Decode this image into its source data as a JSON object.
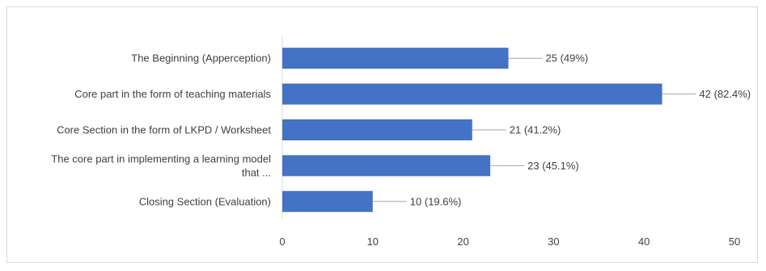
{
  "chart_data": {
    "type": "bar",
    "orientation": "horizontal",
    "categories": [
      [
        "The Beginning (Apperception)"
      ],
      [
        "Core part in the form of teaching materials"
      ],
      [
        "Core Section in the form of LKPD / Worksheet"
      ],
      [
        "The core part in implementing a learning model",
        "that ..."
      ],
      [
        "Closing Section (Evaluation)"
      ]
    ],
    "values": [
      25,
      42,
      21,
      23,
      10
    ],
    "data_labels": [
      "25 (49%)",
      "42 (82.4%)",
      "21 (41.2%)",
      "23 (45.1%)",
      "10 (19.6%)"
    ],
    "xlim": [
      0,
      50
    ],
    "x_ticks": [
      0,
      10,
      20,
      30,
      40,
      50
    ],
    "title": "",
    "xlabel": "",
    "ylabel": "",
    "grid": false,
    "legend": false,
    "bar_color": "#4472C4",
    "leader_line_color": "#a6a6a6",
    "axis_line_color": "#d9d9d9",
    "text_color": "#404040"
  }
}
